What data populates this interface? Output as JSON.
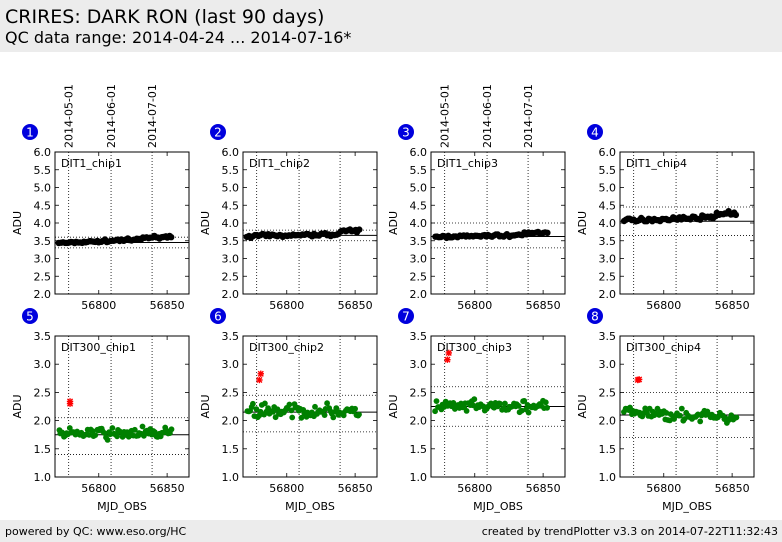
{
  "header": {
    "title": "CRIRES: DARK RON (last 90 days)",
    "subtitle": "QC data range: 2014-04-24 ... 2014-07-16*"
  },
  "footer": {
    "left": "powered by QC: www.eso.org/HC",
    "right": "created by trendPlotter v3.3 on 2014-07-22T11:32:43"
  },
  "colors": {
    "badge": "#0000dd",
    "row1_points": "#000000",
    "row2_points": "#008000",
    "outliers": "#ff0000",
    "header_bg": "#ececec"
  },
  "chart_data": {
    "type": "scatter",
    "date_ticks": [
      {
        "label": "2014-05-01",
        "mjd": 56778
      },
      {
        "label": "2014-06-01",
        "mjd": 56809
      },
      {
        "label": "2014-07-01",
        "mjd": 56839
      }
    ],
    "x_ticks": [
      56800,
      56850
    ],
    "xlabel": "MJD_OBS",
    "ylabel": "ADU",
    "xlim": [
      56768,
      56866
    ],
    "panels": [
      {
        "index": "1",
        "name": "DIT1_chip1",
        "row": 1,
        "ylim": [
          2.0,
          6.0
        ],
        "yticks": [
          2.0,
          2.5,
          3.0,
          3.5,
          4.0,
          4.5,
          5.0,
          5.5,
          6.0
        ],
        "ref": 3.45,
        "band": [
          3.3,
          3.6
        ],
        "x_range": [
          56771,
          56853
        ],
        "y_base": 3.44,
        "y_end": 3.57,
        "step_x": 56832,
        "step_up": 0.05,
        "noise": 0.025,
        "n": 60,
        "outliers": [],
        "show_dates": true
      },
      {
        "index": "2",
        "name": "DIT1_chip2",
        "row": 1,
        "ylim": [
          2.0,
          6.0
        ],
        "yticks": [
          2.0,
          2.5,
          3.0,
          3.5,
          4.0,
          4.5,
          5.0,
          5.5,
          6.0
        ],
        "ref": 3.65,
        "band": [
          3.5,
          3.8
        ],
        "x_range": [
          56771,
          56853
        ],
        "y_base": 3.63,
        "y_end": 3.7,
        "step_x": 56839,
        "step_up": 0.08,
        "noise": 0.03,
        "n": 60,
        "outliers": [],
        "show_dates": false
      },
      {
        "index": "3",
        "name": "DIT1_chip3",
        "row": 1,
        "ylim": [
          2.0,
          6.0
        ],
        "yticks": [
          2.0,
          2.5,
          3.0,
          3.5,
          4.0,
          4.5,
          5.0,
          5.5,
          6.0
        ],
        "ref": 3.62,
        "band": [
          3.3,
          4.0
        ],
        "x_range": [
          56771,
          56853
        ],
        "y_base": 3.61,
        "y_end": 3.67,
        "step_x": 56836,
        "step_up": 0.06,
        "noise": 0.025,
        "n": 60,
        "outliers": [],
        "show_dates": true
      },
      {
        "index": "4",
        "name": "DIT1_chip4",
        "row": 1,
        "ylim": [
          2.0,
          6.0
        ],
        "yticks": [
          2.0,
          2.5,
          3.0,
          3.5,
          4.0,
          4.5,
          5.0,
          5.5,
          6.0
        ],
        "ref": 4.05,
        "band": [
          3.65,
          4.45
        ],
        "x_range": [
          56771,
          56853
        ],
        "y_base": 4.06,
        "y_end": 4.2,
        "step_x": 56838,
        "step_up": 0.08,
        "noise": 0.035,
        "n": 60,
        "outliers": [],
        "show_dates": false
      },
      {
        "index": "5",
        "name": "DIT300_chip1",
        "row": 2,
        "ylim": [
          1.0,
          3.5
        ],
        "yticks": [
          1.0,
          1.5,
          2.0,
          2.5,
          3.0,
          3.5
        ],
        "ref": 1.75,
        "band": [
          1.4,
          2.05
        ],
        "x_range": [
          56771,
          56853
        ],
        "y_base": 1.76,
        "y_end": 1.79,
        "step_x": 56900,
        "step_up": 0.0,
        "noise": 0.07,
        "n": 75,
        "outliers": [
          [
            56779,
            2.3
          ],
          [
            56779,
            2.34
          ]
        ],
        "show_dates": false
      },
      {
        "index": "6",
        "name": "DIT300_chip2",
        "row": 2,
        "ylim": [
          1.0,
          3.5
        ],
        "yticks": [
          1.0,
          1.5,
          2.0,
          2.5,
          3.0,
          3.5
        ],
        "ref": 2.15,
        "band": [
          1.8,
          2.45
        ],
        "x_range": [
          56771,
          56853
        ],
        "y_base": 2.17,
        "y_end": 2.16,
        "step_x": 56900,
        "step_up": 0.0,
        "noise": 0.08,
        "n": 75,
        "outliers": [
          [
            56780,
            2.72
          ],
          [
            56781,
            2.83
          ]
        ],
        "show_dates": false
      },
      {
        "index": "7",
        "name": "DIT300_chip3",
        "row": 2,
        "ylim": [
          1.0,
          3.5
        ],
        "yticks": [
          1.0,
          1.5,
          2.0,
          2.5,
          3.0,
          3.5
        ],
        "ref": 2.25,
        "band": [
          1.9,
          2.6
        ],
        "x_range": [
          56771,
          56853
        ],
        "y_base": 2.24,
        "y_end": 2.25,
        "step_x": 56900,
        "step_up": 0.0,
        "noise": 0.08,
        "n": 75,
        "outliers": [
          [
            56780,
            3.08
          ],
          [
            56781,
            3.2
          ]
        ],
        "show_dates": false
      },
      {
        "index": "8",
        "name": "DIT300_chip4",
        "row": 2,
        "ylim": [
          1.0,
          3.5
        ],
        "yticks": [
          1.0,
          1.5,
          2.0,
          2.5,
          3.0,
          3.5
        ],
        "ref": 2.1,
        "band": [
          1.7,
          2.5
        ],
        "x_range": [
          56771,
          56853
        ],
        "y_base": 2.15,
        "y_end": 2.05,
        "step_x": 56900,
        "step_up": 0.0,
        "noise": 0.07,
        "n": 75,
        "outliers": [
          [
            56781,
            2.72
          ],
          [
            56782,
            2.73
          ]
        ],
        "show_dates": false
      }
    ]
  }
}
